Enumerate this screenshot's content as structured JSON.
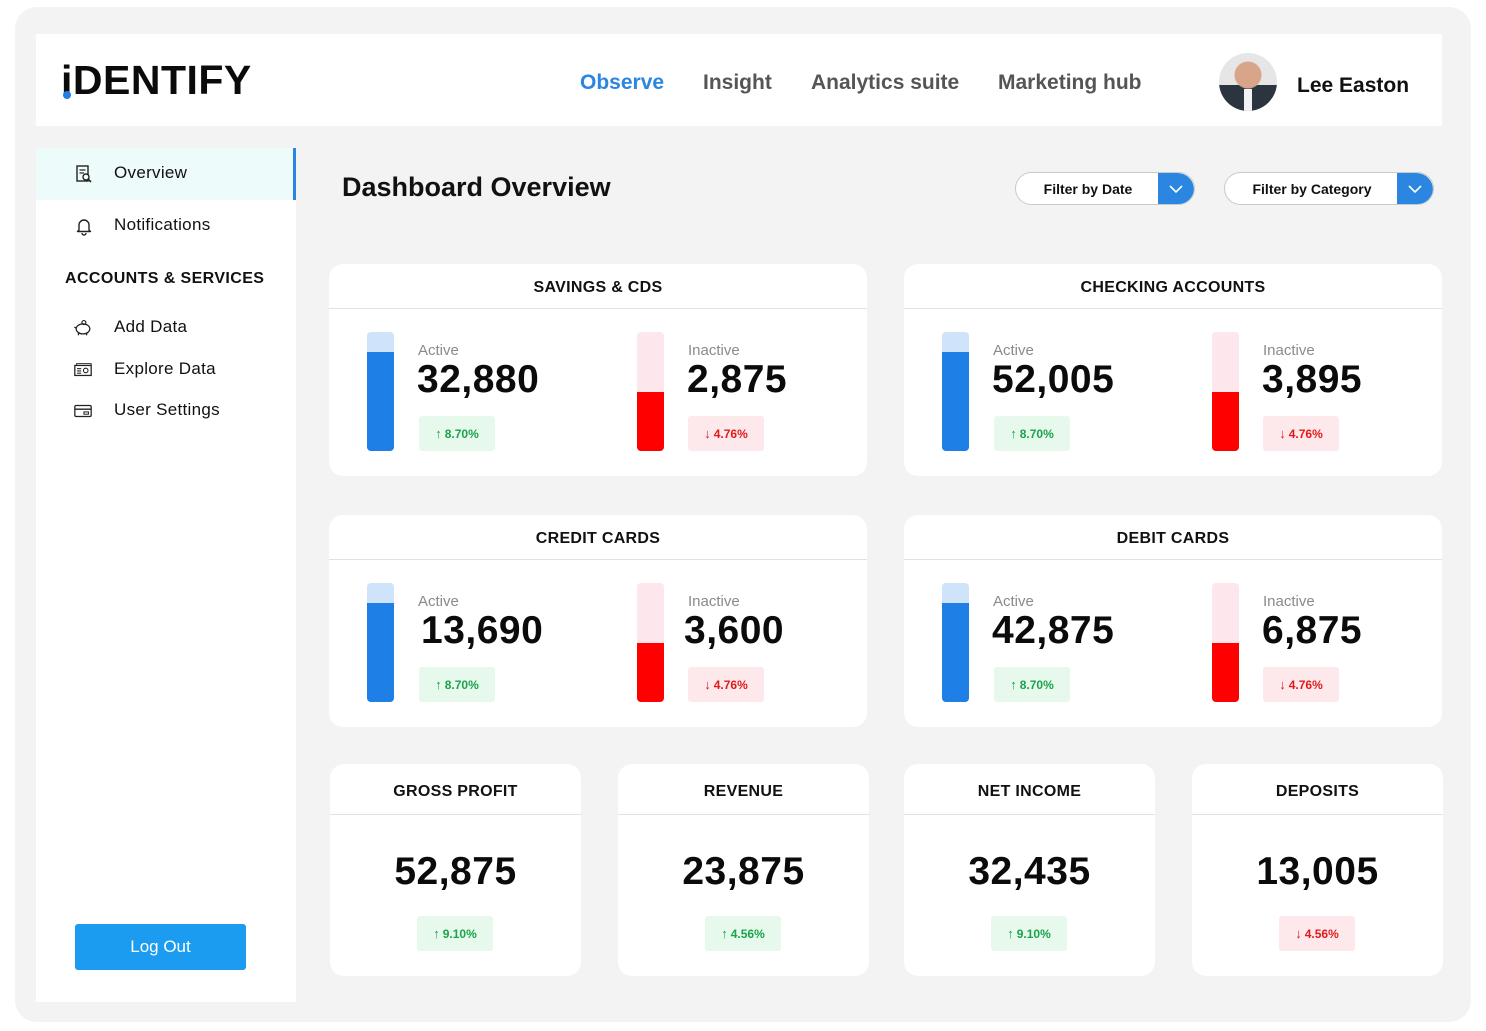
{
  "header": {
    "logo": "iDENTIFY",
    "nav": [
      {
        "label": "Observe",
        "active": true
      },
      {
        "label": "Insight",
        "active": false
      },
      {
        "label": "Analytics suite",
        "active": false
      },
      {
        "label": "Marketing hub",
        "active": false
      }
    ],
    "user_name": "Lee Easton"
  },
  "sidebar": {
    "items": [
      {
        "label": "Overview",
        "icon": "search-document-icon",
        "active": true
      },
      {
        "label": "Notifications",
        "icon": "bell-icon",
        "active": false
      }
    ],
    "section_heading": "ACCOUNTS & SERVICES",
    "section_items": [
      {
        "label": "Add Data",
        "icon": "piggy-bank-icon"
      },
      {
        "label": "Explore Data",
        "icon": "money-icon"
      },
      {
        "label": "User Settings",
        "icon": "card-icon"
      }
    ],
    "logout_label": "Log Out"
  },
  "main": {
    "title": "Dashboard Overview",
    "filters": {
      "date_label": "Filter by Date",
      "category_label": "Filter by Category"
    },
    "account_cards": [
      {
        "title": "SAVINGS & CDS",
        "active": {
          "label": "Active",
          "value": "32,880",
          "change": "8.70%",
          "direction": "up"
        },
        "inactive": {
          "label": "Inactive",
          "value": "2,875",
          "change": "4.76%",
          "direction": "down"
        }
      },
      {
        "title": "CHECKING ACCOUNTS",
        "active": {
          "label": "Active",
          "value": "52,005",
          "change": "8.70%",
          "direction": "up"
        },
        "inactive": {
          "label": "Inactive",
          "value": "3,895",
          "change": "4.76%",
          "direction": "down"
        }
      },
      {
        "title": "CREDIT CARDS",
        "active": {
          "label": "Active",
          "value": "13,690",
          "change": "8.70%",
          "direction": "up"
        },
        "inactive": {
          "label": "Inactive",
          "value": "3,600",
          "change": "4.76%",
          "direction": "down"
        }
      },
      {
        "title": "DEBIT CARDS",
        "active": {
          "label": "Active",
          "value": "42,875",
          "change": "8.70%",
          "direction": "up"
        },
        "inactive": {
          "label": "Inactive",
          "value": "6,875",
          "change": "4.76%",
          "direction": "down"
        }
      }
    ],
    "summary_cards": [
      {
        "title": "GROSS PROFIT",
        "value": "52,875",
        "change": "9.10%",
        "direction": "up"
      },
      {
        "title": "REVENUE",
        "value": "23,875",
        "change": "4.56%",
        "direction": "up"
      },
      {
        "title": "NET INCOME",
        "value": "32,435",
        "change": "9.10%",
        "direction": "up"
      },
      {
        "title": "DEPOSITS",
        "value": "13,005",
        "change": "4.56%",
        "direction": "down"
      }
    ]
  },
  "colors": {
    "accent": "#2a86e0",
    "active_bar": "#1e7fe6",
    "active_bar_track": "#cfe3fb",
    "inactive_bar": "#ff0000",
    "inactive_bar_track": "#fde6ec",
    "up": "#1aa34a",
    "down": "#e01a1a"
  }
}
